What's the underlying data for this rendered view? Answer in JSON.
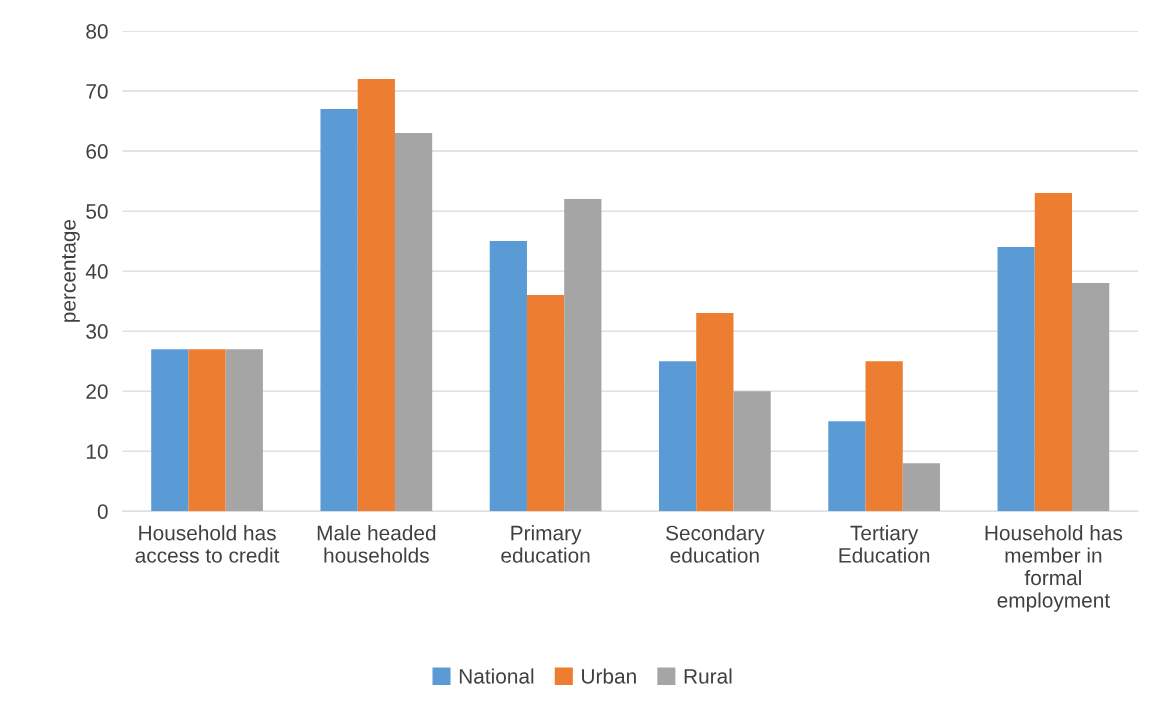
{
  "chart_data": {
    "type": "bar",
    "ylabel": "percentage",
    "categories": [
      "Household has\naccess to credit",
      "Male headed\nhouseholds",
      "Primary\neducation",
      "Secondary\neducation",
      "Tertiary\nEducation",
      "Household has\nmember in\nformal\nemployment"
    ],
    "series": [
      {
        "name": "National",
        "color": "#5b9bd5",
        "values": [
          27,
          67,
          45,
          25,
          15,
          44
        ]
      },
      {
        "name": "Urban",
        "color": "#ed7d31",
        "values": [
          27,
          72,
          36,
          33,
          25,
          53
        ]
      },
      {
        "name": "Rural",
        "color": "#a5a5a5",
        "values": [
          27,
          63,
          52,
          20,
          8,
          38
        ]
      }
    ],
    "ylim": [
      0,
      80
    ],
    "yticks": [
      0,
      10,
      20,
      30,
      40,
      50,
      60,
      70,
      80
    ],
    "grid": "y",
    "legend": "bottom"
  }
}
